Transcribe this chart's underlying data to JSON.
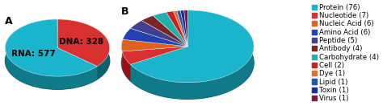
{
  "pie_a_labels": [
    "DNA: 328",
    "RNA: 577"
  ],
  "pie_a_values": [
    328,
    577
  ],
  "pie_a_colors": [
    "#d93030",
    "#1ab5cc"
  ],
  "pie_a_dark_colors": [
    "#a02020",
    "#0f7a8a"
  ],
  "pie_b_labels": [
    "Protein (76)",
    "Nucleotide (7)",
    "Nucleic Acid (6)",
    "Amino Acid (6)",
    "Peptide (5)",
    "Antibody (4)",
    "Carbohydrate (4)",
    "Cell (2)",
    "Dye (1)",
    "Lipid (1)",
    "Toxin (1)",
    "Virus (1)"
  ],
  "pie_b_values": [
    76,
    7,
    6,
    6,
    5,
    4,
    4,
    2,
    1,
    1,
    1,
    1
  ],
  "pie_b_colors": [
    "#1ab5cc",
    "#d93030",
    "#e06020",
    "#2540b0",
    "#404090",
    "#7b2525",
    "#20b0b0",
    "#cc2020",
    "#e07030",
    "#2055b0",
    "#1a3090",
    "#7b1a40"
  ],
  "pie_b_dark_colors": [
    "#0f7a8a",
    "#9a1010",
    "#a04010",
    "#1a2a80",
    "#282860",
    "#501010",
    "#107070",
    "#8a1010",
    "#a04010",
    "#1a3580",
    "#101f60",
    "#500a25"
  ],
  "shadow_color": "#0d6070",
  "label_a": "A",
  "label_b": "B",
  "fontsize_label": 9,
  "fontsize_pie": 7.5,
  "fontsize_legend": 6.2,
  "bg_color": "#f5f5f0"
}
